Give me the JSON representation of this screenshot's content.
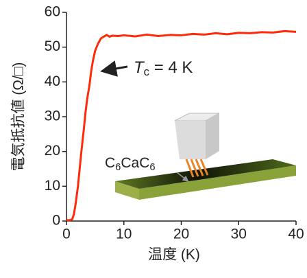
{
  "chart_data": {
    "type": "line",
    "x_label": "温度 (K)",
    "y_label": "電気抵抗値 (Ω/□)",
    "x": [
      0,
      0.5,
      1,
      1.3,
      1.6,
      2,
      2.3,
      2.6,
      3,
      3.3,
      3.6,
      4,
      4.3,
      4.6,
      5,
      5.5,
      6,
      6.5,
      7,
      7.5,
      8,
      9,
      10,
      12,
      14,
      16,
      18,
      20,
      22,
      24,
      26,
      28,
      30,
      32,
      34,
      36,
      38,
      40
    ],
    "series": [
      {
        "color": "#ff2a0a",
        "values": [
          0.3,
          0.2,
          0.5,
          2,
          5,
          10,
          15,
          20,
          26,
          31,
          35,
          39,
          43,
          46,
          49,
          51,
          52.5,
          53,
          53.5,
          53,
          53.3,
          53.2,
          53.4,
          53.1,
          53.6,
          53.2,
          53.5,
          53.4,
          53.8,
          53.6,
          54,
          53.7,
          54.1,
          54,
          54.3,
          54.2,
          54.6,
          54.4
        ]
      }
    ],
    "xlim": [
      0,
      40
    ],
    "xticks": [
      0,
      10,
      20,
      30,
      40
    ],
    "ylim": [
      0,
      60
    ],
    "yticks": [
      0,
      10,
      20,
      30,
      40,
      50,
      60
    ],
    "annotations": [
      [
        {
          "text": "T",
          "italic": true
        },
        {
          "text": "c",
          "sub": true
        },
        {
          "text": " = 4 K"
        }
      ],
      [
        {
          "text": "C"
        },
        {
          "text": "6",
          "sub": true
        },
        {
          "text": "Ca"
        },
        {
          "text": "C"
        },
        {
          "text": "6",
          "sub": true
        }
      ]
    ]
  }
}
